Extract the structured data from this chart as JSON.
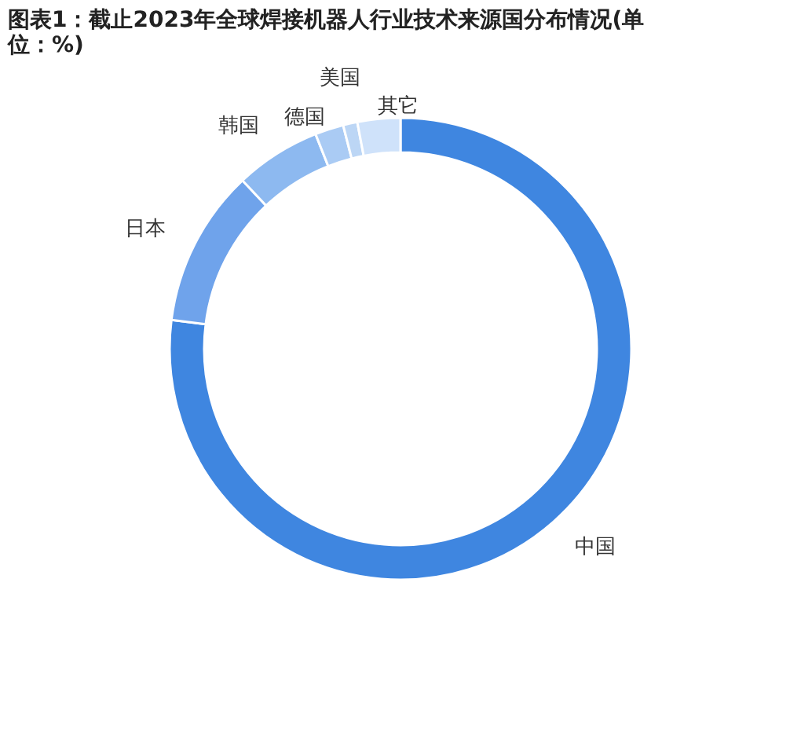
{
  "chart_data": {
    "type": "donut",
    "title": "图表1：截止2023年全球焊接机器人行业技术来源国分布情况(单位：%)",
    "categories": [
      "中国",
      "日本",
      "韩国",
      "德国",
      "美国",
      "其它"
    ],
    "values": [
      77,
      11,
      6,
      2,
      1,
      3
    ],
    "colors": [
      "#3f86e0",
      "#6fa3eb",
      "#8db9f0",
      "#aacbf4",
      "#bcd6f5",
      "#cfe2fa"
    ],
    "legend": false
  }
}
